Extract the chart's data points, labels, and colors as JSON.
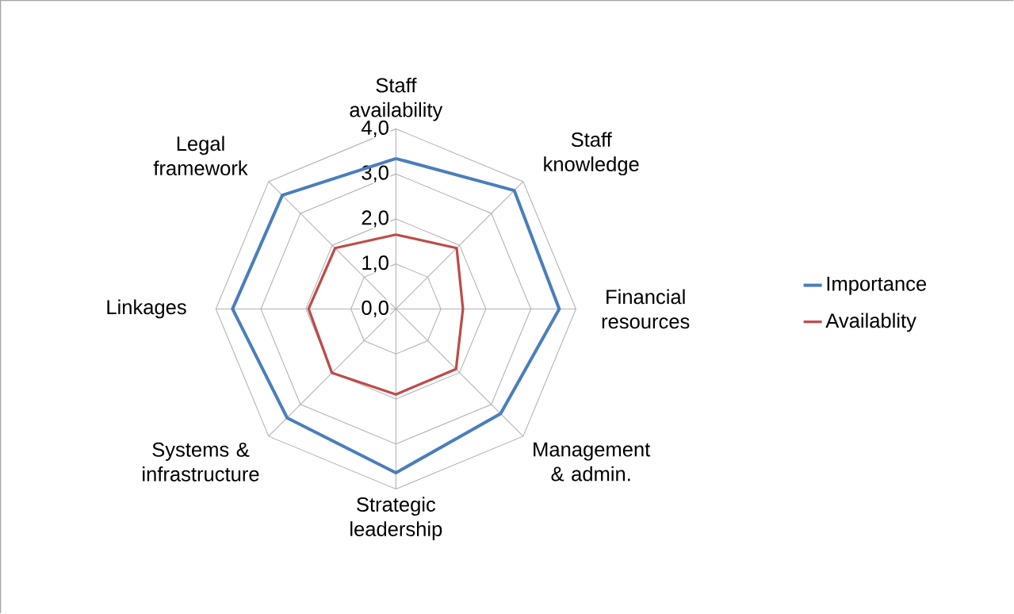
{
  "chart_data": {
    "type": "radar",
    "categories": [
      "Staff availability",
      "Staff knowledge",
      "Financial resources",
      "Management & admin.",
      "Strategic leadership",
      "Systems & infrastructure",
      "Linkages",
      "Legal framework"
    ],
    "series": [
      {
        "name": "Importance",
        "color": "#4a7ebb",
        "values": [
          3.34,
          3.72,
          3.63,
          3.29,
          3.64,
          3.42,
          3.63,
          3.57
        ]
      },
      {
        "name": "Availablity",
        "color": "#be4b48",
        "values": [
          1.65,
          1.91,
          1.49,
          1.89,
          1.9,
          2.01,
          1.94,
          1.91
        ]
      }
    ],
    "ylim": [
      0,
      4
    ],
    "yticks": [
      {
        "value": 0,
        "label": "0,0"
      },
      {
        "value": 1,
        "label": "1,0"
      },
      {
        "value": 2,
        "label": "2,0"
      },
      {
        "value": 3,
        "label": "3,0"
      },
      {
        "value": 4,
        "label": "4,0"
      }
    ],
    "grid": true,
    "legend": "right",
    "marker": "none",
    "line_style": "solid"
  }
}
